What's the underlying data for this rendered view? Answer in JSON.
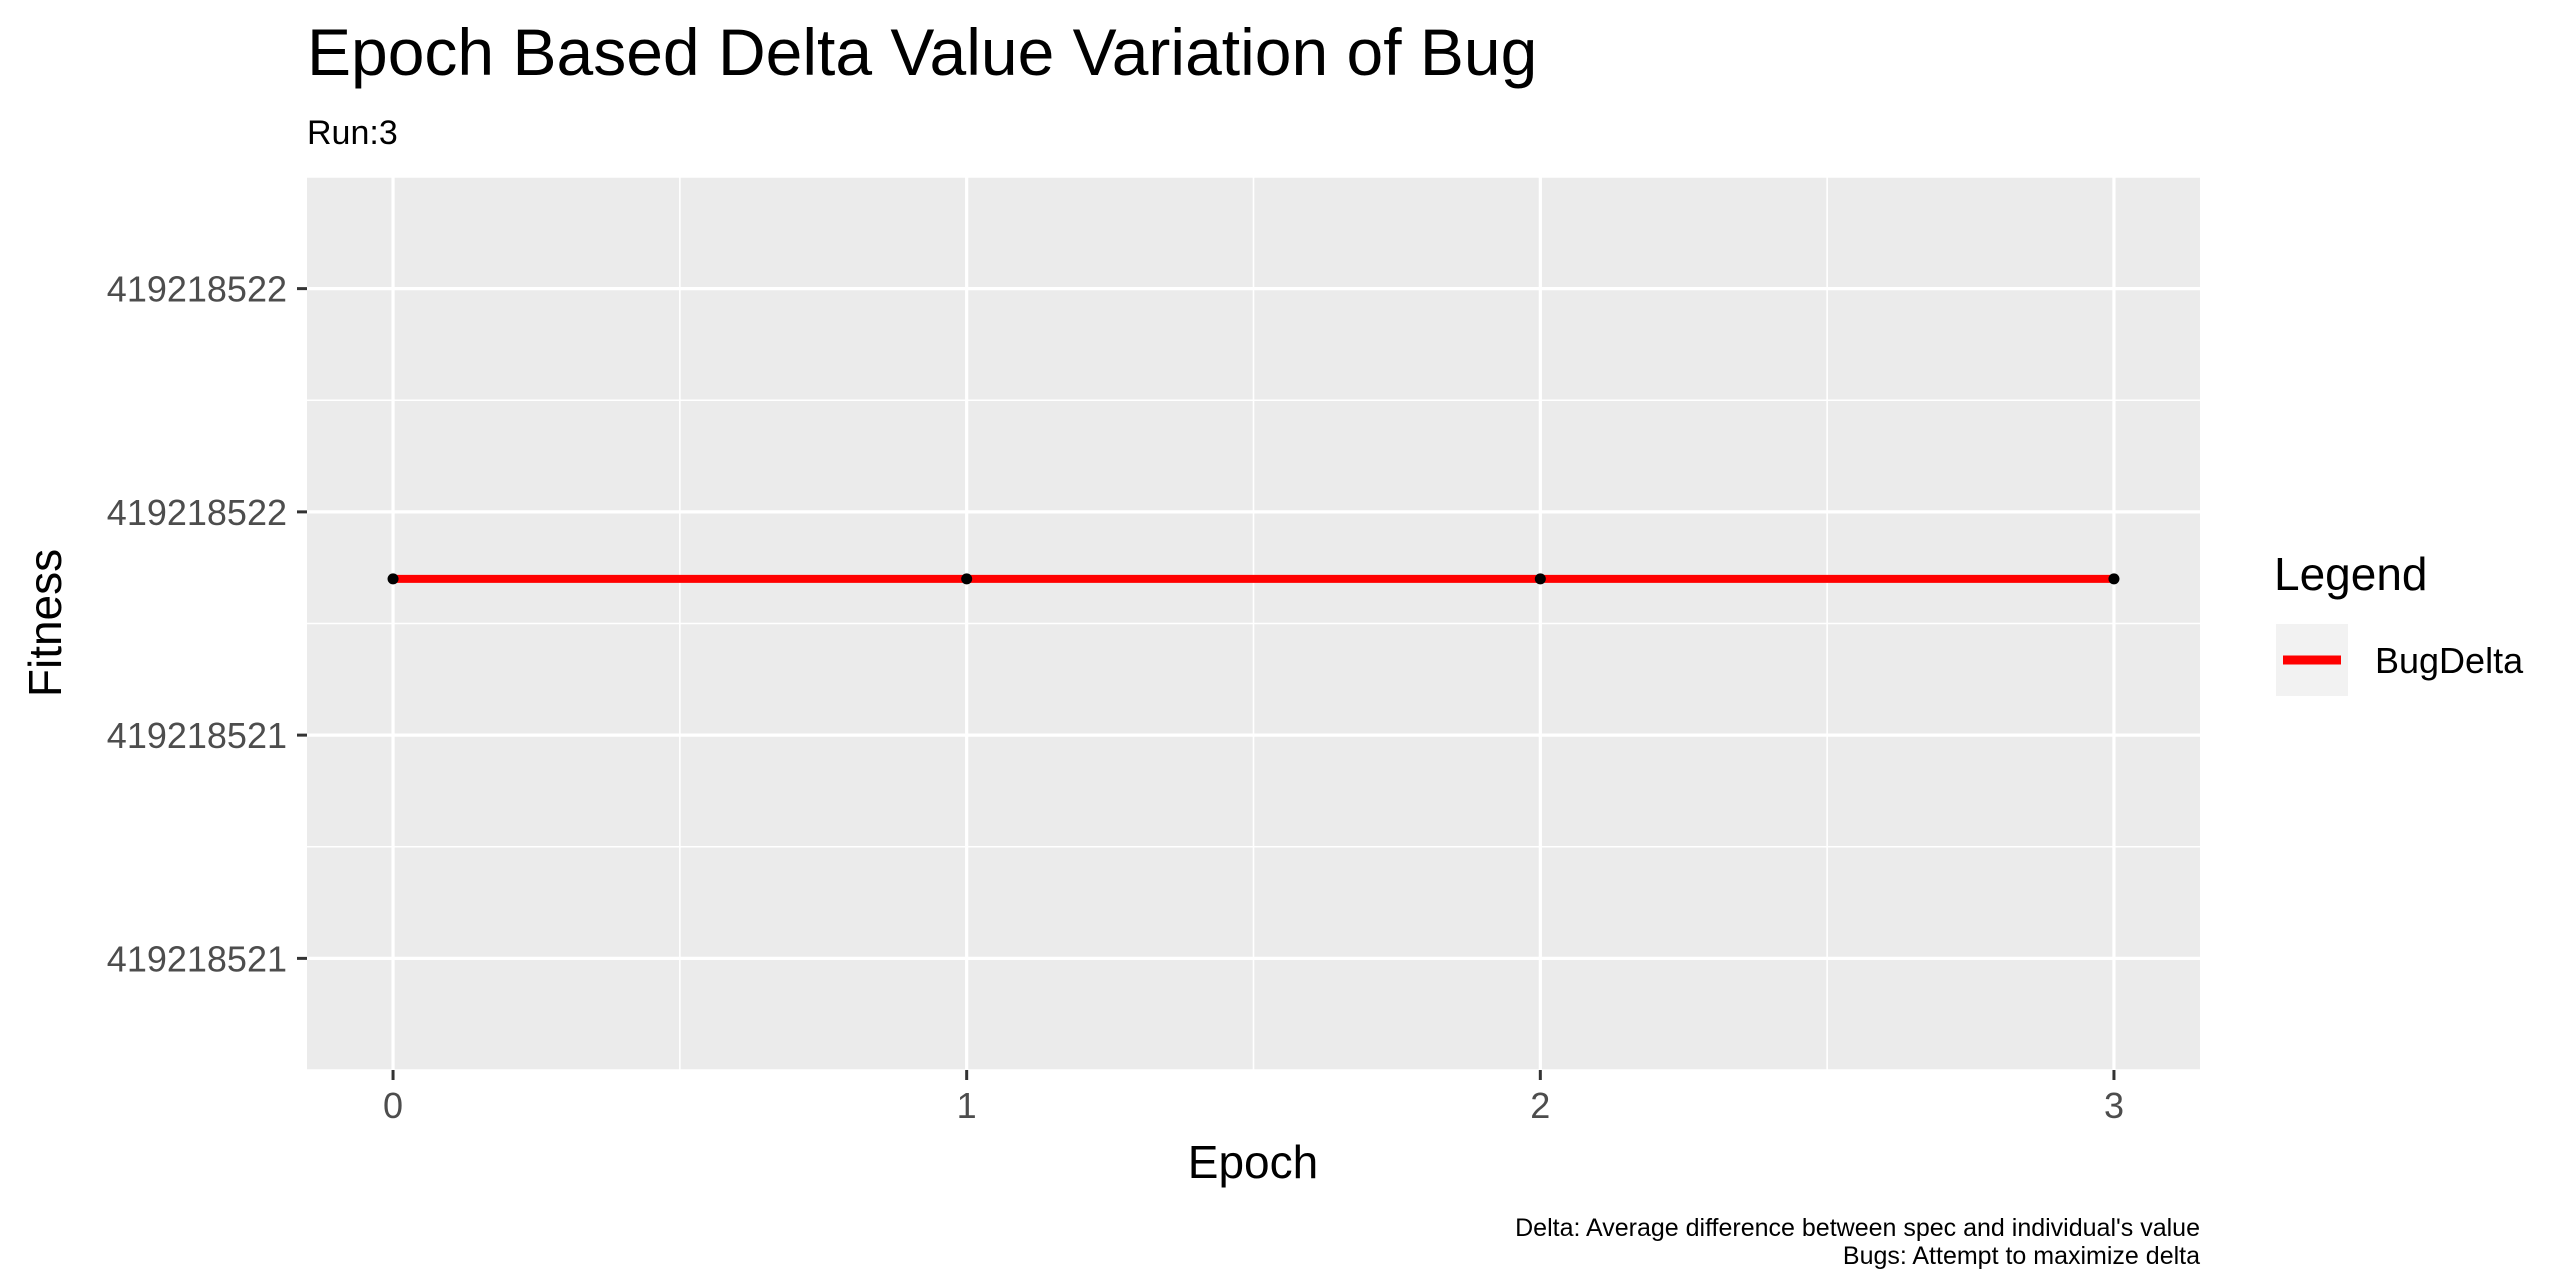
{
  "chart_data": {
    "type": "line",
    "title": "Epoch Based Delta Value Variation of Bug",
    "subtitle": "Run:3",
    "xlabel": "Epoch",
    "ylabel": "Fitness",
    "x": [
      0,
      1,
      2,
      3
    ],
    "xticks": [
      "0",
      "1",
      "2",
      "3"
    ],
    "xlim": [
      -0.15,
      3.15
    ],
    "yticks": [
      {
        "label": "419218521",
        "value": 419218521.2
      },
      {
        "label": "419218521",
        "value": 419218521.4
      },
      {
        "label": "419218522",
        "value": 419218521.6
      },
      {
        "label": "419218522",
        "value": 419218521.8
      }
    ],
    "ylim": [
      419218521.1,
      419218521.9
    ],
    "series": [
      {
        "name": "BugDelta",
        "values": [
          419218521.54,
          419218521.54,
          419218521.54,
          419218521.54
        ],
        "color": "#ff0000",
        "point_color": "#000000"
      }
    ],
    "legend": {
      "title": "Legend",
      "position": "right"
    },
    "grid": true,
    "panel_background": "#ebebeb",
    "caption": [
      "Delta: Average difference between spec and individual's value",
      "Bugs: Attempt to maximize delta"
    ]
  }
}
